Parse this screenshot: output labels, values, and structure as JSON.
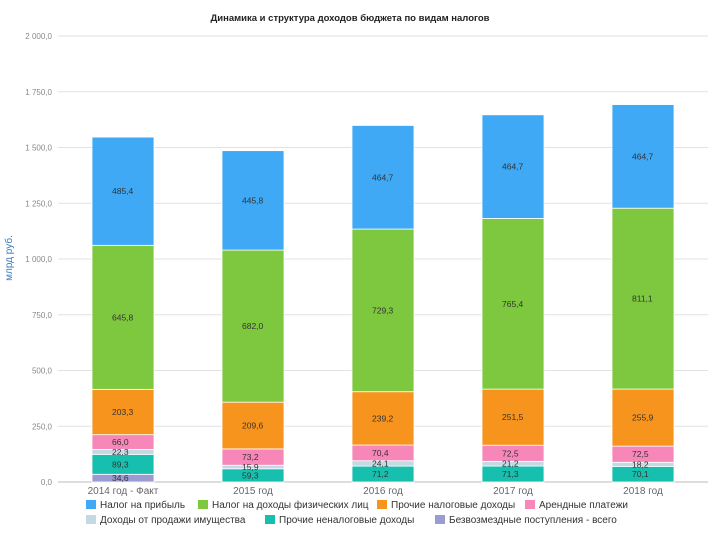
{
  "chart_data": {
    "type": "bar",
    "stacked": true,
    "title": "Динамика и структура доходов бюджета по видам налогов",
    "ylabel": "млрд руб.",
    "xlabel": "",
    "ylim": [
      0,
      2000
    ],
    "yticks": [
      0,
      250,
      500,
      750,
      1000,
      1250,
      1500,
      1750,
      2000
    ],
    "ytick_labels": [
      "0,0",
      "250,0",
      "500,0",
      "750,0",
      "1 000,0",
      "1 250,0",
      "1 500,0",
      "1 750,0",
      "2 000,0"
    ],
    "categories": [
      "2014 год - Факт",
      "2015 год",
      "2016 год",
      "2017 год",
      "2018 год"
    ],
    "series": [
      {
        "name": "Безвозмездные поступления - всего",
        "color": "#9b9bd4",
        "values": [
          34.6,
          0,
          0,
          0,
          0
        ],
        "labels": [
          "34,6",
          "",
          "",
          "",
          ""
        ]
      },
      {
        "name": "Прочие неналоговые доходы",
        "color": "#17bfae",
        "values": [
          89.3,
          59.3,
          71.2,
          71.3,
          70.1
        ],
        "labels": [
          "89,3",
          "59,3",
          "71,2",
          "71,3",
          "70,1"
        ]
      },
      {
        "name": "Доходы от продажи имущества",
        "color": "#c4d9e3",
        "values": [
          22.3,
          15.9,
          24.1,
          21.2,
          18.2
        ],
        "labels": [
          "22,3",
          "15,9",
          "24,1",
          "21,2",
          "18,2"
        ]
      },
      {
        "name": "Арендные платежи",
        "color": "#f787b8",
        "values": [
          66.0,
          73.2,
          70.4,
          72.5,
          72.5
        ],
        "labels": [
          "66,0",
          "73,2",
          "70,4",
          "72,5",
          "72,5"
        ]
      },
      {
        "name": "Прочие налоговые доходы",
        "color": "#f7941e",
        "values": [
          203.3,
          209.6,
          239.2,
          251.5,
          255.9
        ],
        "labels": [
          "203,3",
          "209,6",
          "239,2",
          "251,5",
          "255,9"
        ]
      },
      {
        "name": "Налог на доходы физических лиц",
        "color": "#7dc83f",
        "values": [
          645.8,
          682.0,
          729.3,
          765.4,
          811.1
        ],
        "labels": [
          "645,8",
          "682,0",
          "729,3",
          "765,4",
          "811,1"
        ]
      },
      {
        "name": "Налог на прибыль",
        "color": "#3fa9f5",
        "values": [
          485.4,
          445.8,
          464.7,
          464.7,
          464.7
        ],
        "labels": [
          "485,4",
          "445,8",
          "464,7",
          "464,7",
          "464,7"
        ]
      }
    ],
    "legend_order": [
      6,
      5,
      4,
      3,
      2,
      1,
      0
    ],
    "legend_position": "bottom",
    "grid": true
  }
}
